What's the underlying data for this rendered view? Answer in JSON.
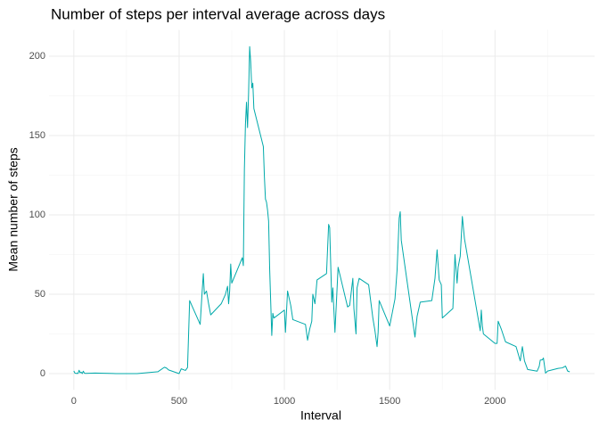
{
  "chart_data": {
    "type": "line",
    "title": "Number of steps per interval average across days",
    "x_label": "Interval",
    "y_label": "Mean number of steps",
    "xlim": [
      -117.75,
      2472.75
    ],
    "ylim": [
      -10.3,
      216.5
    ],
    "xticks": [
      0,
      500,
      1000,
      1500,
      2000
    ],
    "yticks": [
      0,
      50,
      100,
      150,
      200
    ],
    "x_minor_ticks": [
      250,
      750,
      1250,
      1750,
      2250
    ],
    "y_minor_ticks": [
      25,
      75,
      125,
      175
    ],
    "grid": true,
    "x": [
      0,
      5,
      10,
      15,
      20,
      25,
      30,
      35,
      40,
      45,
      50,
      55,
      100,
      200,
      300,
      400,
      430,
      440,
      450,
      500,
      510,
      530,
      540,
      550,
      600,
      610,
      615,
      620,
      630,
      640,
      650,
      700,
      720,
      730,
      735,
      740,
      745,
      750,
      800,
      805,
      810,
      815,
      820,
      825,
      830,
      835,
      840,
      845,
      850,
      855,
      900,
      905,
      910,
      915,
      920,
      925,
      930,
      935,
      940,
      945,
      950,
      1000,
      1005,
      1015,
      1030,
      1040,
      1100,
      1110,
      1120,
      1130,
      1135,
      1145,
      1155,
      1200,
      1210,
      1215,
      1225,
      1230,
      1240,
      1255,
      1300,
      1310,
      1325,
      1330,
      1340,
      1345,
      1355,
      1400,
      1420,
      1430,
      1440,
      1445,
      1450,
      1500,
      1525,
      1535,
      1545,
      1550,
      1555,
      1620,
      1630,
      1645,
      1700,
      1715,
      1725,
      1735,
      1745,
      1750,
      1800,
      1810,
      1820,
      1825,
      1835,
      1845,
      1855,
      1930,
      1935,
      1940,
      1945,
      2000,
      2010,
      2015,
      2030,
      2040,
      2050,
      2100,
      2120,
      2130,
      2140,
      2155,
      2200,
      2210,
      2215,
      2225,
      2230,
      2240,
      2250,
      2300,
      2320,
      2335,
      2345,
      2355
    ],
    "series": [
      {
        "name": "Mean steps",
        "color": "#00a9aa",
        "values": [
          1.7,
          0.3,
          0.1,
          0.2,
          0.1,
          2.1,
          0.5,
          0.9,
          0,
          1.5,
          0.3,
          0.1,
          0.3,
          0,
          0,
          1.2,
          4,
          3.5,
          2.3,
          0,
          3,
          2,
          3.8,
          46,
          31,
          53,
          63,
          50,
          52,
          44,
          37,
          44,
          49.9,
          55,
          44,
          52,
          69,
          57,
          73,
          68,
          129,
          157,
          171,
          155,
          177,
          206,
          196,
          180,
          183,
          167,
          143,
          124,
          110,
          108,
          103,
          96,
          66,
          45,
          24,
          38,
          35,
          40,
          26,
          52,
          43,
          34,
          31,
          21,
          28,
          33,
          50,
          44,
          59,
          63,
          94,
          92,
          45,
          54,
          26,
          67,
          42,
          43,
          60,
          41,
          25,
          54,
          60,
          56,
          35,
          27,
          17,
          26,
          46,
          30,
          47,
          65,
          98,
          102,
          84,
          23,
          36,
          45,
          46,
          60,
          78,
          59,
          56,
          35,
          41,
          75,
          57,
          67,
          74,
          99,
          85,
          27,
          40,
          30,
          25,
          19,
          19,
          33,
          28,
          24,
          20,
          17,
          8,
          17,
          8,
          2.6,
          1.5,
          4.6,
          8.5,
          8.7,
          9.8,
          0.3,
          1.6,
          3.3,
          3.6,
          4.7,
          1.6,
          1.1
        ]
      }
    ]
  }
}
